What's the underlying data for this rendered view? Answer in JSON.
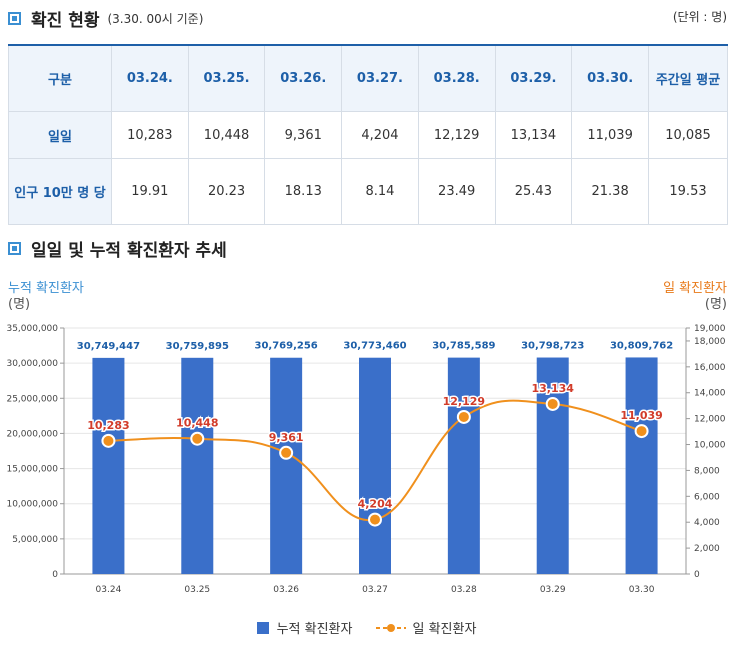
{
  "section1": {
    "title": "확진 현황",
    "subtitle": "(3.30. 00시 기준)",
    "unit": "(단위 : 명)"
  },
  "table": {
    "header": [
      "구분",
      "03.24.",
      "03.25.",
      "03.26.",
      "03.27.",
      "03.28.",
      "03.29.",
      "03.30.",
      "주간일 평균"
    ],
    "rows": [
      {
        "label": "일일",
        "cells": [
          "10,283",
          "10,448",
          "9,361",
          "4,204",
          "12,129",
          "13,134",
          "11,039",
          "10,085"
        ]
      },
      {
        "label": "인구 10만 명 당",
        "cells": [
          "19.91",
          "20.23",
          "18.13",
          "8.14",
          "23.49",
          "25.43",
          "21.38",
          "19.53"
        ]
      }
    ]
  },
  "section2": {
    "title": "일일 및 누적 확진환자 추세"
  },
  "chart_data": {
    "type": "bar+line",
    "categories": [
      "03.24",
      "03.25",
      "03.26",
      "03.27",
      "03.28",
      "03.29",
      "03.30"
    ],
    "series": [
      {
        "name": "누적 확진환자",
        "type": "bar",
        "axis": "left",
        "values": [
          30749447,
          30759895,
          30769256,
          30773460,
          30785589,
          30798723,
          30809762
        ],
        "labels": [
          "30,749,447",
          "30,759,895",
          "30,769,256",
          "30,773,460",
          "30,785,589",
          "30,798,723",
          "30,809,762"
        ],
        "color": "#3a6fc9"
      },
      {
        "name": "일 확진환자",
        "type": "line",
        "axis": "right",
        "values": [
          10283,
          10448,
          9361,
          4204,
          12129,
          13134,
          11039
        ],
        "labels": [
          "10,283",
          "10,448",
          "9,361",
          "4,204",
          "12,129",
          "13,134",
          "11,039"
        ],
        "color": "#f0901d"
      }
    ],
    "left_axis": {
      "label": "누적 확진환자",
      "unit": "(명)",
      "ylim": [
        0,
        35000000
      ],
      "ticks": [
        "0",
        "5,000,000",
        "10,000,000",
        "15,000,000",
        "20,000,000",
        "25,000,000",
        "30,000,000",
        "35,000,000"
      ],
      "tick_values": [
        0,
        5000000,
        10000000,
        15000000,
        20000000,
        25000000,
        30000000,
        35000000
      ]
    },
    "right_axis": {
      "label": "일 확진환자",
      "unit": "(명)",
      "ylim": [
        0,
        19000
      ],
      "ticks": [
        "0",
        "2,000",
        "4,000",
        "6,000",
        "8,000",
        "10,000",
        "12,000",
        "14,000",
        "16,000",
        "18,000",
        "19,000"
      ],
      "tick_values": [
        0,
        2000,
        4000,
        6000,
        8000,
        10000,
        12000,
        14000,
        16000,
        18000,
        19000
      ]
    },
    "grid": true,
    "legend": "bottom-center"
  },
  "colors": {
    "bar": "#3a6fc9",
    "line": "#f0901d",
    "label_blue": "#1d5fa8",
    "label_red": "#d23c2a"
  }
}
